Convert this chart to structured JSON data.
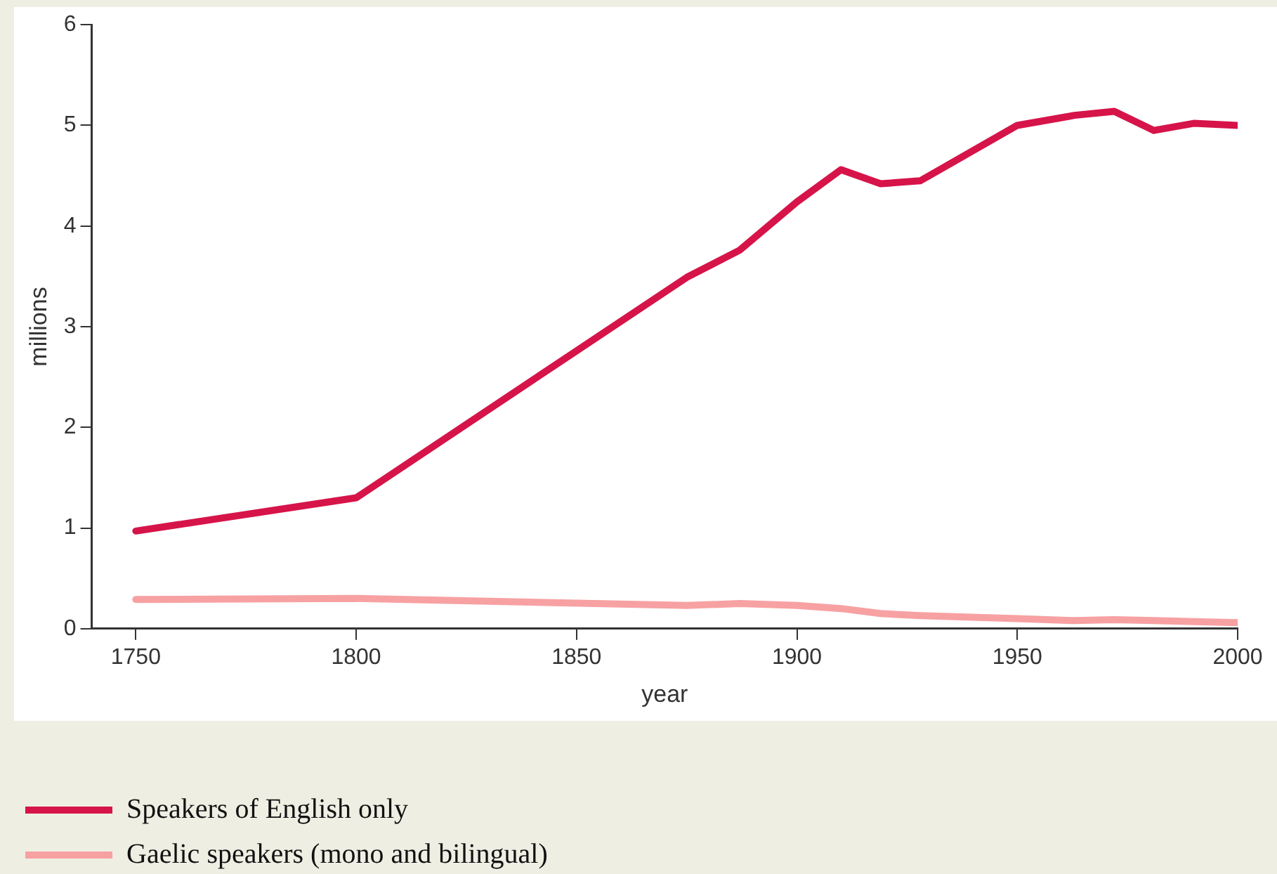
{
  "chart_data": {
    "type": "line",
    "xlabel": "year",
    "ylabel": "millions",
    "x": [
      1750,
      1800,
      1875,
      1887,
      1900,
      1910,
      1919,
      1928,
      1950,
      1963,
      1972,
      1981,
      1990,
      2000
    ],
    "xlim": [
      1740,
      2000
    ],
    "xticks": [
      1750,
      1800,
      1850,
      1900,
      1950,
      2000
    ],
    "ylim": [
      0,
      6
    ],
    "yticks": [
      0,
      1,
      2,
      3,
      4,
      5,
      6
    ],
    "series": [
      {
        "name": "Speakers of English only",
        "color": "#d6144a",
        "values": [
          0.97,
          1.3,
          3.49,
          3.76,
          4.24,
          4.56,
          4.42,
          4.45,
          5.0,
          5.1,
          5.14,
          4.95,
          5.02,
          5.0
        ]
      },
      {
        "name": "Gaelic speakers (mono and bilingual)",
        "color": "#f7a1a3",
        "values": [
          0.29,
          0.3,
          0.23,
          0.25,
          0.23,
          0.2,
          0.15,
          0.13,
          0.1,
          0.08,
          0.09,
          0.08,
          0.07,
          0.06
        ]
      }
    ],
    "grid": false,
    "legend": "bottom",
    "marker": "none",
    "line_style": "solid"
  }
}
